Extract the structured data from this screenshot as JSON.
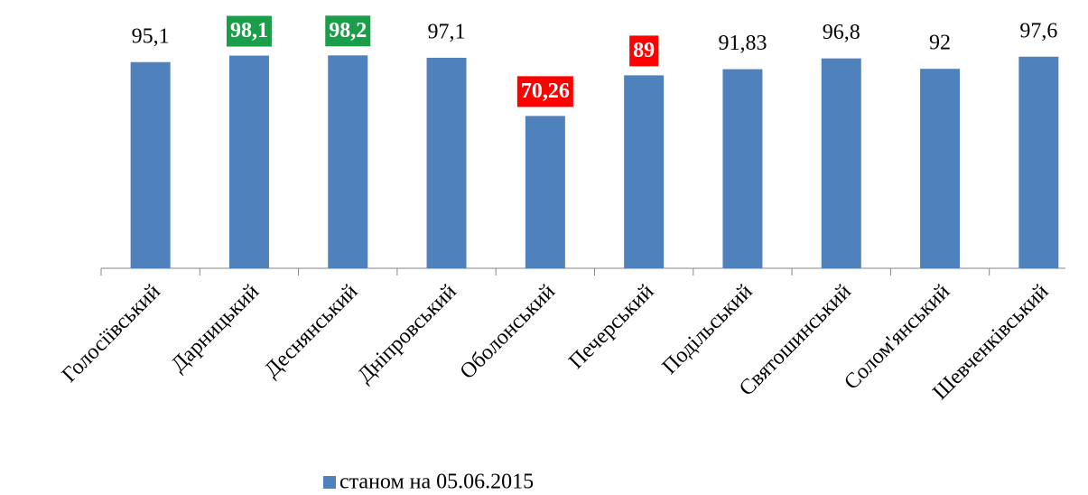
{
  "chart_data": {
    "type": "bar",
    "categories": [
      "Голосіївський",
      "Дарницький",
      "Деснянський",
      "Дніпровський",
      "Оболонський",
      "Печерський",
      "Подільський",
      "Святошинський",
      "Солом'янський",
      "Шевченківський"
    ],
    "series": [
      {
        "name": "станом на 05.06.2015",
        "color": "#4f81bd",
        "values": [
          95.1,
          98.1,
          98.2,
          97.1,
          70.26,
          89,
          91.83,
          96.8,
          92,
          97.6
        ],
        "value_labels": [
          "95,1",
          "98,1",
          "98,2",
          "97,1",
          "70,26",
          "89",
          "91,83",
          "96,8",
          "92",
          "97,6"
        ],
        "label_highlights": [
          null,
          "#1a9e4a",
          "#1a9e4a",
          null,
          "#ff0000",
          "#ff0000",
          null,
          null,
          null,
          null
        ]
      }
    ],
    "ylim": [
      0,
      100
    ],
    "legend": "bottom"
  }
}
